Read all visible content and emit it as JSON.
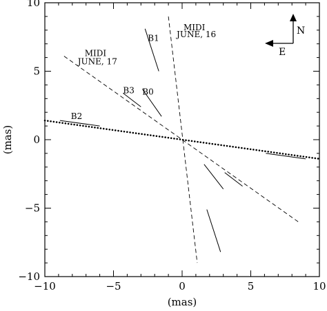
{
  "chart_data": {
    "type": "line",
    "xlabel": "(mas)",
    "ylabel": "(mas)",
    "xlim": [
      -10,
      10
    ],
    "ylim": [
      -10,
      10
    ],
    "x_ticks": [
      -10,
      -5,
      0,
      5,
      10
    ],
    "y_ticks": [
      -10,
      -5,
      0,
      5,
      10
    ],
    "x_tick_labels": [
      "−10",
      "−5",
      "0",
      "5",
      "10"
    ],
    "y_tick_labels": [
      "−10",
      "−5",
      "0",
      "5",
      "10"
    ],
    "grid": false,
    "series": [
      {
        "label": "MIDI\nJUNE, 16",
        "style": "dashed",
        "points": [
          [
            -1.0,
            9.0
          ],
          [
            1.1,
            -9.0
          ]
        ]
      },
      {
        "label": "MIDI\nJUNE, 17",
        "style": "dashed",
        "points": [
          [
            -8.6,
            6.1
          ],
          [
            8.6,
            -6.1
          ]
        ]
      },
      {
        "style": "dotted",
        "points": [
          [
            -10,
            1.4
          ],
          [
            10,
            -1.4
          ]
        ]
      },
      {
        "label": "B1",
        "style": "solid",
        "segments": [
          [
            [
              -2.7,
              8.1
            ],
            [
              -1.7,
              5.0
            ]
          ],
          [
            [
              1.8,
              -5.1
            ],
            [
              2.8,
              -8.2
            ]
          ]
        ]
      },
      {
        "label": "B0",
        "style": "solid",
        "segments": [
          [
            [
              -2.9,
              3.7
            ],
            [
              -1.5,
              1.7
            ]
          ],
          [
            [
              1.6,
              -1.8
            ],
            [
              3.0,
              -3.6
            ]
          ]
        ]
      },
      {
        "label": "B3",
        "style": "solid",
        "segments": [
          [
            [
              -4.3,
              3.4
            ],
            [
              -3.0,
              2.4
            ]
          ],
          [
            [
              3.1,
              -2.4
            ],
            [
              4.4,
              -3.4
            ]
          ]
        ]
      },
      {
        "label": "B2",
        "style": "solid",
        "segments": [
          [
            [
              -8.9,
              1.4
            ],
            [
              -6.0,
              1.0
            ]
          ],
          [
            [
              6.1,
              -1.0
            ],
            [
              9.0,
              -1.4
            ]
          ]
        ]
      }
    ],
    "annotations": [
      {
        "text": "B1",
        "x": -2.5,
        "y": 7.2
      },
      {
        "text": "B0",
        "x": -2.9,
        "y": 3.3
      },
      {
        "text": "B3",
        "x": -4.3,
        "y": 3.4
      },
      {
        "text": "B2",
        "x": -8.1,
        "y": 1.5
      },
      {
        "text": "MIDI",
        "x": 0.1,
        "y": 8.0
      },
      {
        "text": "JUNE, 16",
        "x": -0.4,
        "y": 7.5
      },
      {
        "text": "MIDI",
        "x": -7.1,
        "y": 6.1
      },
      {
        "text": "JUNE, 17",
        "x": -7.6,
        "y": 5.5
      }
    ],
    "compass": {
      "north": "N",
      "east": "E"
    }
  }
}
